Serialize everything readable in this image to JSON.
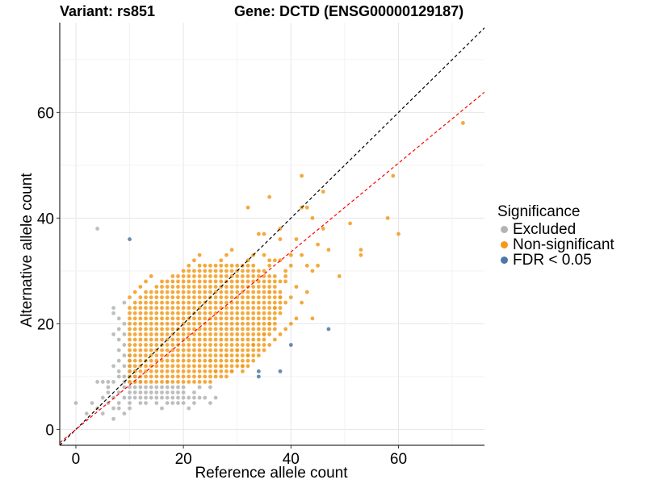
{
  "chart_data": {
    "type": "scatter",
    "title_left": "Variant: rs851",
    "title_right": "Gene: DCTD (ENSG00000129187)",
    "xlabel": "Reference allele count",
    "ylabel": "Alternative allele count",
    "xlim": [
      -3,
      76
    ],
    "ylim": [
      -3,
      77
    ],
    "x_ticks": [
      0,
      20,
      40,
      60
    ],
    "y_ticks": [
      0,
      20,
      40,
      60
    ],
    "grid": true,
    "legend": {
      "title": "Significance",
      "position": "right",
      "entries": [
        "Excluded",
        "Non-significant",
        "FDR < 0.05"
      ]
    },
    "colors": {
      "Excluded": "#b3b3b3",
      "Non-significant": "#f29a1a",
      "FDR < 0.05": "#4a78a8",
      "identity_line": "#000000",
      "fit_line": "#ff0000"
    },
    "reference_lines": [
      {
        "type": "identity",
        "slope": 1,
        "intercept": 0,
        "style": "dashed",
        "color": "#000000"
      },
      {
        "type": "fit",
        "slope": 0.84,
        "intercept": 0,
        "style": "dashed",
        "color": "#ff0000"
      }
    ],
    "series": [
      {
        "name": "Excluded",
        "points": [
          [
            0,
            5
          ],
          [
            4,
            38
          ],
          [
            2,
            3
          ],
          [
            3,
            5
          ],
          [
            4,
            4
          ],
          [
            4,
            9
          ],
          [
            5,
            3
          ],
          [
            5,
            6
          ],
          [
            5,
            9
          ],
          [
            6,
            5
          ],
          [
            6,
            7
          ],
          [
            6,
            8
          ],
          [
            6,
            9
          ],
          [
            7,
            2
          ],
          [
            7,
            4
          ],
          [
            7,
            6
          ],
          [
            7,
            9
          ],
          [
            7,
            12
          ],
          [
            7,
            18
          ],
          [
            7,
            22
          ],
          [
            7,
            23
          ],
          [
            8,
            4
          ],
          [
            8,
            5
          ],
          [
            8,
            7
          ],
          [
            8,
            10
          ],
          [
            8,
            11
          ],
          [
            8,
            13
          ],
          [
            8,
            15
          ],
          [
            8,
            17
          ],
          [
            8,
            19
          ],
          [
            8,
            21
          ],
          [
            9,
            3
          ],
          [
            9,
            6
          ],
          [
            9,
            8
          ],
          [
            9,
            9
          ],
          [
            9,
            10
          ],
          [
            9,
            12
          ],
          [
            9,
            14
          ],
          [
            9,
            16
          ],
          [
            9,
            18
          ],
          [
            9,
            20
          ],
          [
            9,
            24
          ],
          [
            10,
            4
          ],
          [
            10,
            5
          ],
          [
            10,
            6
          ],
          [
            10,
            7
          ],
          [
            10,
            8
          ],
          [
            10,
            9
          ],
          [
            10,
            10
          ],
          [
            10,
            11
          ],
          [
            10,
            12
          ],
          [
            10,
            13
          ],
          [
            10,
            14
          ],
          [
            11,
            6
          ],
          [
            11,
            7
          ],
          [
            11,
            8
          ],
          [
            11,
            9
          ],
          [
            11,
            10
          ],
          [
            11,
            11
          ],
          [
            12,
            5
          ],
          [
            12,
            6
          ],
          [
            12,
            7
          ],
          [
            12,
            8
          ],
          [
            12,
            9
          ],
          [
            13,
            5
          ],
          [
            13,
            6
          ],
          [
            13,
            7
          ],
          [
            13,
            8
          ],
          [
            14,
            6
          ],
          [
            14,
            7
          ],
          [
            14,
            8
          ],
          [
            15,
            6
          ],
          [
            15,
            7
          ],
          [
            15,
            8
          ],
          [
            16,
            6
          ],
          [
            16,
            7
          ],
          [
            16,
            8
          ],
          [
            17,
            6
          ],
          [
            17,
            7
          ],
          [
            17,
            8
          ],
          [
            17,
            9
          ],
          [
            18,
            5
          ],
          [
            18,
            6
          ],
          [
            18,
            7
          ],
          [
            18,
            8
          ],
          [
            19,
            6
          ],
          [
            19,
            7
          ],
          [
            19,
            8
          ],
          [
            20,
            6
          ],
          [
            20,
            7
          ],
          [
            20,
            8
          ],
          [
            21,
            4
          ],
          [
            21,
            6
          ],
          [
            22,
            6
          ],
          [
            22,
            7
          ],
          [
            23,
            6
          ],
          [
            23,
            8
          ],
          [
            24,
            6
          ],
          [
            25,
            5
          ],
          [
            25,
            8
          ],
          [
            26,
            6
          ],
          [
            15,
            5
          ],
          [
            16,
            4
          ],
          [
            17,
            5
          ],
          [
            19,
            5
          ],
          [
            22,
            5
          ],
          [
            20,
            5
          ]
        ]
      },
      {
        "name": "FDR < 0.05",
        "points": [
          [
            10,
            36
          ],
          [
            34,
            10
          ],
          [
            34,
            11
          ],
          [
            38,
            11
          ],
          [
            40,
            16
          ],
          [
            47,
            19
          ]
        ]
      },
      {
        "name": "Non-significant",
        "points": [
          [
            72,
            58
          ],
          [
            59,
            48
          ],
          [
            58,
            40
          ],
          [
            60,
            37
          ],
          [
            53,
            34
          ],
          [
            53,
            33
          ],
          [
            51,
            39
          ],
          [
            49,
            29
          ],
          [
            46,
            45
          ],
          [
            42,
            48
          ],
          [
            36,
            44
          ],
          [
            42,
            42
          ],
          [
            43,
            42
          ],
          [
            44,
            40
          ],
          [
            45,
            35
          ],
          [
            47,
            34
          ],
          [
            46,
            38
          ],
          [
            32,
            42
          ],
          [
            34,
            37
          ],
          [
            35,
            37
          ],
          [
            38,
            38
          ],
          [
            38,
            36
          ],
          [
            41,
            36
          ],
          [
            40,
            33
          ],
          [
            42,
            33
          ],
          [
            43,
            31
          ],
          [
            44,
            30
          ],
          [
            45,
            31
          ],
          [
            35,
            33
          ],
          [
            36,
            32
          ],
          [
            38,
            32
          ],
          [
            39,
            30
          ],
          [
            40,
            31
          ],
          [
            37,
            29
          ],
          [
            39,
            28
          ],
          [
            41,
            27
          ],
          [
            43,
            26
          ],
          [
            42,
            24
          ],
          [
            38,
            25
          ],
          [
            36,
            26
          ],
          [
            44,
            21
          ],
          [
            41,
            21
          ],
          [
            36,
            20
          ],
          [
            37,
            23
          ],
          [
            35,
            18
          ],
          [
            33,
            16
          ],
          [
            30,
            15
          ],
          [
            31,
            12
          ],
          [
            29,
            11
          ],
          [
            30,
            13
          ],
          [
            32,
            14
          ],
          [
            25,
            13
          ],
          [
            27,
            12
          ],
          [
            28,
            14
          ],
          [
            26,
            11
          ]
        ]
      }
    ],
    "dense_cloud": {
      "series": "Non-significant",
      "x_range": [
        10,
        40
      ],
      "y_range": [
        9,
        35
      ],
      "note": "Integer lattice of overlapping points forming the main cloud"
    }
  }
}
